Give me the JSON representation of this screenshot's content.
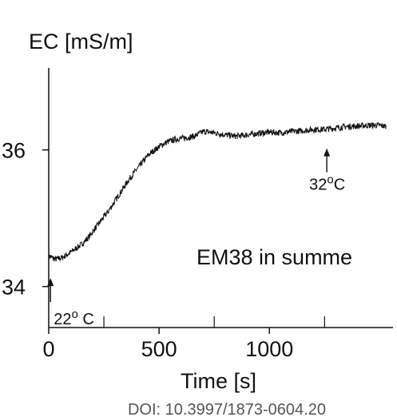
{
  "chart_data": {
    "type": "line",
    "ylabel": "EC [mS/m]",
    "xlabel": "Time [s]",
    "xlim": [
      0,
      1560
    ],
    "ylim": [
      33.4,
      37.2
    ],
    "x_ticks": [
      0,
      500,
      1000
    ],
    "x_minor_ticks": [
      250,
      750,
      1250
    ],
    "y_ticks": [
      34,
      36
    ],
    "grid": false,
    "series": [
      {
        "x": [
          0,
          30,
          60,
          90,
          120,
          150,
          180,
          210,
          240,
          270,
          300,
          330,
          360,
          390,
          420,
          450,
          480,
          510,
          540,
          570,
          600,
          630,
          660,
          700,
          750,
          800,
          850,
          900,
          950,
          1000,
          1050,
          1100,
          1150,
          1200,
          1250,
          1300,
          1350,
          1400,
          1450,
          1500,
          1530
        ],
        "y": [
          34.45,
          34.4,
          34.42,
          34.48,
          34.55,
          34.62,
          34.72,
          34.85,
          34.98,
          35.1,
          35.25,
          35.4,
          35.55,
          35.68,
          35.8,
          35.92,
          36.0,
          36.07,
          36.12,
          36.15,
          36.17,
          36.18,
          36.2,
          36.27,
          36.25,
          36.22,
          36.2,
          36.22,
          36.24,
          36.26,
          36.25,
          36.27,
          36.28,
          36.3,
          36.3,
          36.32,
          36.34,
          36.35,
          36.36,
          36.36,
          36.34
        ]
      }
    ],
    "annotations": [
      {
        "text": "32",
        "sup": "o",
        "unit": "C",
        "x": 1260,
        "y": 36.0
      },
      {
        "text": "22",
        "sup": "o",
        "unit": " C",
        "x": 8,
        "y": 34.1
      }
    ],
    "inline_label": "EM38 in summe"
  },
  "footer": {
    "doi": "DOI: 10.3997/1873-0604.20"
  }
}
